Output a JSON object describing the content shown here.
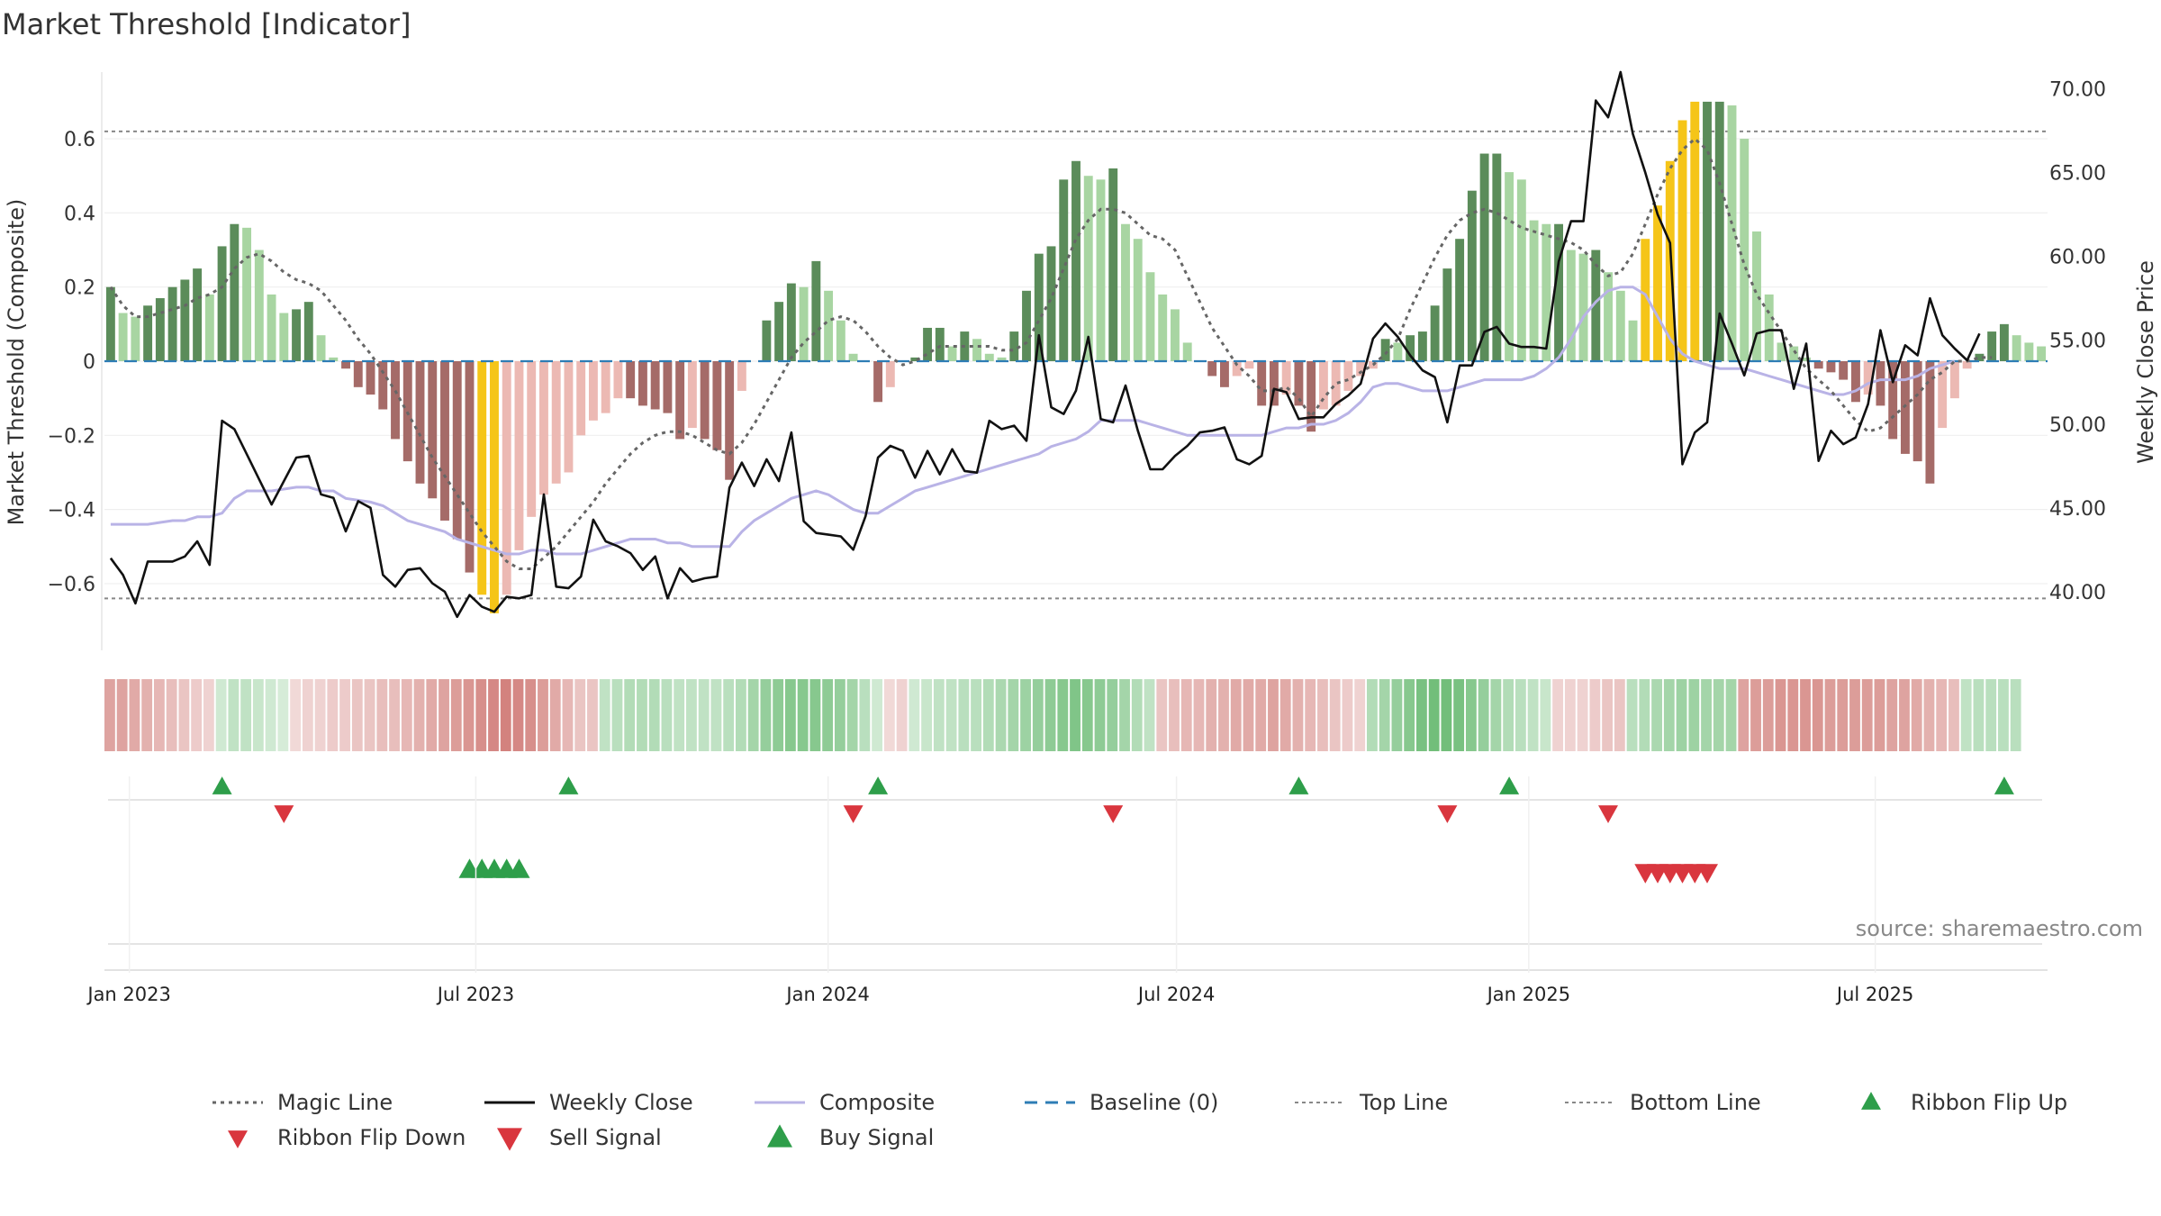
{
  "title": "Market Threshold [Indicator]",
  "source_label": "source: sharemaestro.com",
  "colors": {
    "strong_pos": "#5b8c5a",
    "light_pos": "#a8d5a2",
    "strong_neg": "#a56b68",
    "light_neg": "#ecb9b3",
    "extreme": "#f5c518",
    "weekly": "#111111",
    "composite": "#b9b3e6",
    "magic": "#666666",
    "baseline": "#2e7db5",
    "ref": "#888888",
    "buy": "#2e9e4a",
    "sell": "#d9363e",
    "ribbon_pos": "#5cb466",
    "ribbon_neg": "#c96762"
  },
  "chart_data": {
    "type": "bar",
    "title": "Market Threshold [Indicator]",
    "ylabel": "Market Threshold (Composite)",
    "y2label": "Weekly Close Price",
    "ylim": [
      -0.78,
      0.78
    ],
    "y2lim": [
      36.5,
      71.0
    ],
    "yticks": [
      0.6,
      0.4,
      0.2,
      0,
      -0.2,
      -0.4,
      -0.6
    ],
    "ytick_labels": [
      "0.6",
      "0.4",
      "0.2",
      "0",
      "−0.2",
      "−0.4",
      "−0.6"
    ],
    "y2ticks": [
      70,
      65,
      60,
      55,
      50,
      45,
      40
    ],
    "y2tick_labels": [
      "70.00",
      "65.00",
      "60.00",
      "55.00",
      "50.00",
      "45.00",
      "40.00"
    ],
    "x_start": "2022-12-19",
    "x_end": "2025-09-29",
    "date_ticks": [
      {
        "label": "Jan 2023",
        "date": "2023-01-01"
      },
      {
        "label": "Jul 2023",
        "date": "2023-07-01"
      },
      {
        "label": "Jan 2024",
        "date": "2024-01-01"
      },
      {
        "label": "Jul 2024",
        "date": "2024-07-01"
      },
      {
        "label": "Jan 2025",
        "date": "2025-01-01"
      },
      {
        "label": "Jul 2025",
        "date": "2025-07-01"
      }
    ],
    "top_line": 0.62,
    "bottom_line": -0.64,
    "baseline": 0,
    "histogram": [
      0.2,
      0.13,
      0.12,
      0.15,
      0.17,
      0.2,
      0.22,
      0.25,
      0.18,
      0.31,
      0.37,
      0.36,
      0.3,
      0.18,
      0.13,
      0.14,
      0.16,
      0.07,
      0.01,
      -0.02,
      -0.07,
      -0.09,
      -0.13,
      -0.21,
      -0.27,
      -0.33,
      -0.37,
      -0.43,
      -0.48,
      -0.57,
      -0.63,
      -0.68,
      -0.63,
      -0.51,
      -0.42,
      -0.36,
      -0.33,
      -0.3,
      -0.2,
      -0.16,
      -0.14,
      -0.1,
      -0.1,
      -0.12,
      -0.13,
      -0.14,
      -0.21,
      -0.18,
      -0.21,
      -0.24,
      -0.32,
      -0.08,
      0.0,
      0.11,
      0.16,
      0.21,
      0.2,
      0.27,
      0.19,
      0.11,
      0.02,
      0.0,
      -0.11,
      -0.07,
      0.0,
      0.01,
      0.09,
      0.09,
      0.04,
      0.08,
      0.06,
      0.02,
      0.01,
      0.08,
      0.19,
      0.29,
      0.31,
      0.49,
      0.54,
      0.5,
      0.49,
      0.52,
      0.37,
      0.33,
      0.24,
      0.18,
      0.14,
      0.05,
      0.0,
      -0.04,
      -0.07,
      -0.04,
      -0.02,
      -0.12,
      -0.12,
      -0.09,
      -0.12,
      -0.19,
      -0.13,
      -0.12,
      -0.08,
      -0.04,
      -0.02,
      0.06,
      0.05,
      0.07,
      0.08,
      0.15,
      0.25,
      0.33,
      0.46,
      0.56,
      0.56,
      0.51,
      0.49,
      0.38,
      0.37,
      0.37,
      0.3,
      0.29,
      0.3,
      0.24,
      0.19,
      0.11,
      0.33,
      0.42,
      0.54,
      0.65,
      0.7,
      0.7,
      0.7,
      0.69,
      0.6,
      0.35,
      0.18,
      0.05,
      0.04,
      0.01,
      -0.02,
      -0.03,
      -0.05,
      -0.11,
      -0.09,
      -0.12,
      -0.21,
      -0.25,
      -0.27,
      -0.33,
      -0.18,
      -0.1,
      -0.02,
      0.02,
      0.08,
      0.1,
      0.07,
      0.05,
      0.04
    ],
    "weekly_close": [
      42.0,
      41.0,
      39.3,
      41.8,
      41.8,
      41.8,
      42.1,
      43.0,
      41.6,
      50.2,
      49.7,
      48.2,
      46.7,
      45.2,
      46.6,
      48.0,
      48.1,
      45.8,
      45.6,
      43.6,
      45.4,
      45.0,
      41.0,
      40.3,
      41.3,
      41.4,
      40.5,
      40.0,
      38.5,
      39.8,
      39.1,
      38.8,
      39.7,
      39.6,
      39.8,
      45.8,
      40.3,
      40.2,
      40.9,
      44.3,
      43.0,
      42.7,
      42.3,
      41.3,
      42.1,
      39.6,
      41.4,
      40.6,
      40.8,
      40.9,
      46.2,
      47.7,
      46.3,
      47.9,
      46.6,
      49.5,
      44.2,
      43.5,
      43.4,
      43.3,
      42.5,
      44.5,
      48.0,
      48.7,
      48.4,
      46.8,
      48.4,
      47.0,
      48.5,
      47.2,
      47.1,
      50.2,
      49.7,
      49.9,
      49.0,
      55.3,
      51.0,
      50.6,
      52.0,
      55.2,
      50.3,
      50.1,
      52.3,
      49.6,
      47.3,
      47.3,
      48.1,
      48.7,
      49.5,
      49.6,
      49.8,
      47.9,
      47.6,
      48.1,
      52.1,
      51.9,
      50.3,
      50.4,
      50.4,
      51.2,
      51.7,
      52.4,
      55.1,
      56.0,
      55.2,
      54.1,
      53.2,
      52.8,
      50.1,
      53.5,
      53.5,
      55.5,
      55.8,
      54.8,
      54.6,
      54.6,
      54.5,
      59.7,
      62.1,
      62.1,
      69.3,
      68.3,
      71.0,
      67.3,
      65.0,
      62.5,
      60.8,
      47.6,
      49.5,
      50.1,
      56.6,
      54.8,
      52.9,
      55.4,
      55.6,
      55.6,
      52.1,
      54.8,
      47.8,
      49.6,
      48.8,
      49.2,
      51.2,
      55.6,
      52.5,
      54.7,
      54.1,
      57.5,
      55.3,
      54.5,
      53.8,
      55.4
    ],
    "composite": [
      -0.44,
      -0.44,
      -0.44,
      -0.44,
      -0.435,
      -0.43,
      -0.43,
      -0.42,
      -0.42,
      -0.41,
      -0.37,
      -0.35,
      -0.35,
      -0.35,
      -0.345,
      -0.34,
      -0.34,
      -0.35,
      -0.35,
      -0.37,
      -0.375,
      -0.38,
      -0.39,
      -0.41,
      -0.43,
      -0.44,
      -0.45,
      -0.46,
      -0.48,
      -0.49,
      -0.5,
      -0.51,
      -0.52,
      -0.52,
      -0.51,
      -0.51,
      -0.52,
      -0.52,
      -0.52,
      -0.51,
      -0.5,
      -0.49,
      -0.48,
      -0.48,
      -0.48,
      -0.49,
      -0.49,
      -0.5,
      -0.5,
      -0.5,
      -0.5,
      -0.46,
      -0.43,
      -0.41,
      -0.39,
      -0.37,
      -0.36,
      -0.35,
      -0.36,
      -0.38,
      -0.4,
      -0.41,
      -0.41,
      -0.39,
      -0.37,
      -0.35,
      -0.34,
      -0.33,
      -0.32,
      -0.31,
      -0.3,
      -0.29,
      -0.28,
      -0.27,
      -0.26,
      -0.25,
      -0.23,
      -0.22,
      -0.21,
      -0.19,
      -0.16,
      -0.16,
      -0.16,
      -0.16,
      -0.17,
      -0.18,
      -0.19,
      -0.2,
      -0.2,
      -0.2,
      -0.2,
      -0.2,
      -0.2,
      -0.2,
      -0.19,
      -0.18,
      -0.18,
      -0.17,
      -0.17,
      -0.16,
      -0.14,
      -0.11,
      -0.07,
      -0.06,
      -0.06,
      -0.07,
      -0.08,
      -0.08,
      -0.08,
      -0.07,
      -0.06,
      -0.05,
      -0.05,
      -0.05,
      -0.05,
      -0.04,
      -0.02,
      0.01,
      0.06,
      0.12,
      0.16,
      0.19,
      0.2,
      0.2,
      0.18,
      0.12,
      0.06,
      0.02,
      0.0,
      -0.01,
      -0.02,
      -0.02,
      -0.02,
      -0.03,
      -0.04,
      -0.05,
      -0.06,
      -0.07,
      -0.08,
      -0.09,
      -0.09,
      -0.08,
      -0.06,
      -0.05,
      -0.05,
      -0.05,
      -0.04,
      -0.02,
      -0.01,
      0.0
    ],
    "magic_line": [
      0.2,
      0.15,
      0.12,
      0.12,
      0.13,
      0.14,
      0.15,
      0.17,
      0.18,
      0.2,
      0.25,
      0.28,
      0.29,
      0.27,
      0.24,
      0.22,
      0.21,
      0.19,
      0.15,
      0.11,
      0.06,
      0.02,
      -0.03,
      -0.08,
      -0.14,
      -0.2,
      -0.26,
      -0.31,
      -0.36,
      -0.41,
      -0.46,
      -0.5,
      -0.54,
      -0.56,
      -0.56,
      -0.53,
      -0.5,
      -0.46,
      -0.42,
      -0.38,
      -0.33,
      -0.29,
      -0.25,
      -0.22,
      -0.2,
      -0.19,
      -0.19,
      -0.2,
      -0.22,
      -0.24,
      -0.25,
      -0.22,
      -0.17,
      -0.11,
      -0.05,
      0.01,
      0.05,
      0.08,
      0.11,
      0.12,
      0.11,
      0.08,
      0.04,
      0.01,
      -0.01,
      0.0,
      0.02,
      0.04,
      0.04,
      0.04,
      0.04,
      0.04,
      0.03,
      0.03,
      0.05,
      0.11,
      0.17,
      0.25,
      0.33,
      0.38,
      0.41,
      0.41,
      0.4,
      0.37,
      0.34,
      0.33,
      0.3,
      0.23,
      0.16,
      0.09,
      0.04,
      -0.01,
      -0.04,
      -0.08,
      -0.08,
      -0.07,
      -0.1,
      -0.15,
      -0.1,
      -0.06,
      -0.05,
      -0.03,
      -0.01,
      0.02,
      0.06,
      0.14,
      0.21,
      0.28,
      0.34,
      0.38,
      0.4,
      0.41,
      0.4,
      0.38,
      0.36,
      0.35,
      0.34,
      0.33,
      0.32,
      0.3,
      0.26,
      0.23,
      0.24,
      0.29,
      0.37,
      0.45,
      0.52,
      0.57,
      0.6,
      0.57,
      0.48,
      0.37,
      0.26,
      0.18,
      0.13,
      0.08,
      0.03,
      -0.02,
      -0.05,
      -0.08,
      -0.12,
      -0.16,
      -0.19,
      -0.18,
      -0.15,
      -0.12,
      -0.09,
      -0.05,
      -0.03,
      0.0,
      0.0,
      0.01,
      0.01
    ],
    "extreme_bars": [
      30,
      31,
      124,
      125,
      126,
      127,
      128
    ],
    "ribbon": [
      -0.55,
      -0.55,
      -0.5,
      -0.45,
      -0.4,
      -0.35,
      -0.3,
      -0.25,
      -0.2,
      0.2,
      0.3,
      0.3,
      0.25,
      0.2,
      0.15,
      -0.15,
      -0.2,
      -0.2,
      -0.25,
      -0.25,
      -0.3,
      -0.3,
      -0.35,
      -0.35,
      -0.4,
      -0.45,
      -0.5,
      -0.55,
      -0.6,
      -0.65,
      -0.7,
      -0.75,
      -0.8,
      -0.75,
      -0.7,
      -0.6,
      -0.5,
      -0.4,
      -0.3,
      -0.3,
      0.3,
      0.35,
      0.4,
      0.4,
      0.4,
      0.35,
      0.3,
      0.3,
      0.3,
      0.3,
      0.35,
      0.4,
      0.5,
      0.6,
      0.65,
      0.7,
      0.7,
      0.7,
      0.65,
      0.6,
      0.5,
      0.35,
      0.2,
      -0.15,
      -0.2,
      0.2,
      0.25,
      0.3,
      0.3,
      0.35,
      0.35,
      0.4,
      0.45,
      0.5,
      0.55,
      0.6,
      0.65,
      0.7,
      0.75,
      0.7,
      0.65,
      0.6,
      0.5,
      0.4,
      0.3,
      -0.3,
      -0.35,
      -0.4,
      -0.4,
      -0.45,
      -0.45,
      -0.5,
      -0.5,
      -0.5,
      -0.55,
      -0.5,
      -0.45,
      -0.4,
      -0.35,
      -0.3,
      -0.25,
      -0.2,
      0.4,
      0.5,
      0.6,
      0.7,
      0.8,
      0.85,
      0.85,
      0.8,
      0.7,
      0.6,
      0.5,
      0.4,
      0.35,
      0.3,
      0.25,
      -0.2,
      -0.2,
      -0.2,
      -0.25,
      -0.3,
      -0.3,
      0.35,
      0.4,
      0.45,
      0.5,
      0.55,
      0.55,
      0.5,
      0.5,
      0.5,
      -0.55,
      -0.6,
      -0.6,
      -0.65,
      -0.65,
      -0.65,
      -0.65,
      -0.6,
      -0.6,
      -0.6,
      -0.6,
      -0.6,
      -0.55,
      -0.55,
      -0.5,
      -0.45,
      -0.4,
      -0.35,
      0.3,
      0.35,
      0.35,
      0.35,
      0.35
    ],
    "ribbon_flip_up": [
      9,
      37,
      62,
      96,
      113,
      153
    ],
    "ribbon_flip_down": [
      14,
      60,
      81,
      108,
      121
    ],
    "buy_signal": [
      29,
      30,
      31,
      32,
      33
    ],
    "sell_signal": [
      124,
      125,
      126,
      127,
      128,
      129
    ],
    "series": [
      {
        "name": "Magic Line",
        "style": "dotted"
      },
      {
        "name": "Weekly Close",
        "style": "solid"
      },
      {
        "name": "Composite",
        "style": "solid"
      },
      {
        "name": "Baseline (0)",
        "style": "dashed"
      },
      {
        "name": "Top Line",
        "style": "dotted"
      },
      {
        "name": "Bottom Line",
        "style": "dotted"
      }
    ],
    "legend": [
      {
        "label": "Magic Line",
        "kind": "magic"
      },
      {
        "label": "Weekly Close",
        "kind": "weekly"
      },
      {
        "label": "Composite",
        "kind": "composite"
      },
      {
        "label": "Baseline (0)",
        "kind": "baseline"
      },
      {
        "label": "Top Line",
        "kind": "top"
      },
      {
        "label": "Bottom Line",
        "kind": "bottom"
      },
      {
        "label": "Ribbon Flip Up",
        "kind": "flip_up"
      },
      {
        "label": "Ribbon Flip Down",
        "kind": "flip_down"
      },
      {
        "label": "Sell Signal",
        "kind": "sell"
      },
      {
        "label": "Buy Signal",
        "kind": "buy"
      }
    ]
  }
}
